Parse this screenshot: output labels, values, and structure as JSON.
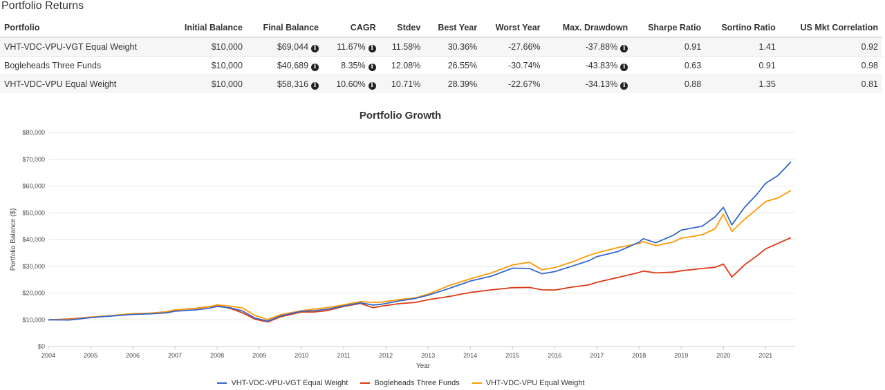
{
  "section_title": "Portfolio Returns",
  "table": {
    "headers": [
      "Portfolio",
      "Initial Balance",
      "Final Balance",
      "CAGR",
      "Stdev",
      "Best Year",
      "Worst Year",
      "Max. Drawdown",
      "Sharpe Ratio",
      "Sortino Ratio",
      "US Mkt Correlation"
    ],
    "rows": [
      {
        "portfolio": "VHT-VDC-VPU-VGT Equal Weight",
        "initial": "$10,000",
        "final": "$69,044",
        "cagr": "11.67%",
        "stdev": "11.58%",
        "best": "30.36%",
        "worst": "-27.66%",
        "drawdown": "-37.88%",
        "sharpe": "0.91",
        "sortino": "1.41",
        "corr": "0.92"
      },
      {
        "portfolio": "Bogleheads Three Funds",
        "initial": "$10,000",
        "final": "$40,689",
        "cagr": "8.35%",
        "stdev": "12.08%",
        "best": "26.55%",
        "worst": "-30.74%",
        "drawdown": "-43.83%",
        "sharpe": "0.63",
        "sortino": "0.91",
        "corr": "0.98"
      },
      {
        "portfolio": "VHT-VDC-VPU Equal Weight",
        "initial": "$10,000",
        "final": "$58,316",
        "cagr": "10.60%",
        "stdev": "10.71%",
        "best": "28.39%",
        "worst": "-22.67%",
        "drawdown": "-34.13%",
        "sharpe": "0.88",
        "sortino": "1.35",
        "corr": "0.81"
      }
    ],
    "info_icon": "info-circle-icon"
  },
  "chart_data": {
    "type": "line",
    "title": "Portfolio Growth",
    "xlabel": "Year",
    "ylabel": "Portfolio Balance ($)",
    "xlim": [
      2004,
      2021.7
    ],
    "ylim": [
      0,
      80000
    ],
    "y_ticks": [
      "$0",
      "$10,000",
      "$20,000",
      "$30,000",
      "$40,000",
      "$50,000",
      "$60,000",
      "$70,000",
      "$80,000"
    ],
    "x_ticks": [
      "2004",
      "2005",
      "2006",
      "2007",
      "2008",
      "2009",
      "2010",
      "2011",
      "2012",
      "2013",
      "2014",
      "2015",
      "2016",
      "2017",
      "2018",
      "2019",
      "2020",
      "2021"
    ],
    "grid": true,
    "legend_position": "bottom",
    "series": [
      {
        "name": "VHT-VDC-VPU-VGT Equal Weight",
        "color": "#3366cc",
        "x": [
          2004.0,
          2004.5,
          2005.0,
          2005.5,
          2006.0,
          2006.4,
          2006.8,
          2007.0,
          2007.5,
          2007.8,
          2008.0,
          2008.3,
          2008.6,
          2008.9,
          2009.2,
          2009.5,
          2010.0,
          2010.3,
          2010.6,
          2011.0,
          2011.4,
          2011.7,
          2011.9,
          2012.3,
          2012.7,
          2013.0,
          2013.5,
          2014.0,
          2014.5,
          2015.0,
          2015.4,
          2015.7,
          2016.0,
          2016.4,
          2016.8,
          2017.0,
          2017.5,
          2018.0,
          2018.1,
          2018.4,
          2018.8,
          2019.0,
          2019.5,
          2019.8,
          2020.0,
          2020.2,
          2020.5,
          2020.8,
          2021.0,
          2021.3,
          2021.6
        ],
        "y": [
          10000,
          9900,
          10800,
          11400,
          12000,
          12200,
          12600,
          13200,
          13700,
          14300,
          15000,
          14500,
          13300,
          10600,
          9500,
          11400,
          13200,
          13400,
          13900,
          15200,
          16300,
          15500,
          15800,
          17000,
          18000,
          19200,
          21700,
          24500,
          26300,
          29300,
          29200,
          27200,
          28000,
          30000,
          32000,
          33600,
          35500,
          39000,
          40300,
          38800,
          41500,
          43500,
          45000,
          48500,
          52000,
          45500,
          52000,
          57000,
          61000,
          64000,
          69044
        ]
      },
      {
        "name": "Bogleheads Three Funds",
        "color": "#dc3912",
        "x": [
          2004.0,
          2004.5,
          2005.0,
          2005.5,
          2006.0,
          2006.4,
          2006.8,
          2007.0,
          2007.5,
          2007.8,
          2008.0,
          2008.3,
          2008.6,
          2008.9,
          2009.2,
          2009.5,
          2010.0,
          2010.3,
          2010.6,
          2011.0,
          2011.4,
          2011.7,
          2011.9,
          2012.3,
          2012.7,
          2013.0,
          2013.5,
          2014.0,
          2014.5,
          2015.0,
          2015.4,
          2015.7,
          2016.0,
          2016.4,
          2016.8,
          2017.0,
          2017.5,
          2018.0,
          2018.1,
          2018.4,
          2018.8,
          2019.0,
          2019.5,
          2019.8,
          2020.0,
          2020.2,
          2020.5,
          2020.8,
          2021.0,
          2021.3,
          2021.6
        ],
        "y": [
          10000,
          10300,
          11000,
          11500,
          12200,
          12400,
          12900,
          13600,
          14300,
          14900,
          15300,
          14300,
          12600,
          10200,
          9200,
          11100,
          12900,
          12900,
          13400,
          15000,
          16100,
          14500,
          15100,
          16000,
          16500,
          17500,
          18700,
          20200,
          21200,
          22000,
          22100,
          21200,
          21100,
          22200,
          23000,
          24000,
          25800,
          27700,
          28200,
          27500,
          27800,
          28300,
          29200,
          29600,
          30800,
          26000,
          30500,
          34000,
          36500,
          38600,
          40689
        ]
      },
      {
        "name": "VHT-VDC-VPU Equal Weight",
        "color": "#ff9900",
        "x": [
          2004.0,
          2004.5,
          2005.0,
          2005.5,
          2006.0,
          2006.4,
          2006.8,
          2007.0,
          2007.5,
          2007.8,
          2008.0,
          2008.3,
          2008.6,
          2008.9,
          2009.2,
          2009.5,
          2010.0,
          2010.3,
          2010.6,
          2011.0,
          2011.4,
          2011.7,
          2011.9,
          2012.3,
          2012.7,
          2013.0,
          2013.5,
          2014.0,
          2014.5,
          2015.0,
          2015.4,
          2015.7,
          2016.0,
          2016.4,
          2016.8,
          2017.0,
          2017.5,
          2018.0,
          2018.1,
          2018.4,
          2018.8,
          2019.0,
          2019.5,
          2019.8,
          2020.0,
          2020.2,
          2020.5,
          2020.8,
          2021.0,
          2021.3,
          2021.6
        ],
        "y": [
          10000,
          10100,
          11000,
          11600,
          12300,
          12500,
          13000,
          13700,
          14200,
          14800,
          15600,
          15100,
          14400,
          11600,
          10100,
          11900,
          13400,
          14000,
          14500,
          15600,
          16800,
          16500,
          16600,
          17500,
          18200,
          19600,
          22800,
          25300,
          27500,
          30500,
          31500,
          28700,
          29500,
          31500,
          34000,
          35000,
          37000,
          38500,
          39200,
          37700,
          39000,
          40500,
          41800,
          44000,
          49500,
          43000,
          47500,
          51500,
          54200,
          55600,
          58316
        ]
      }
    ]
  }
}
